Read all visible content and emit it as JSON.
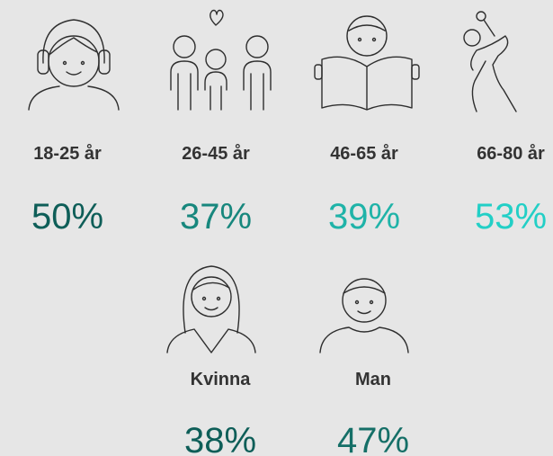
{
  "age_groups": [
    {
      "label": "18-25 år",
      "value": "50%",
      "color": "#0e5e58"
    },
    {
      "label": "26-45 år",
      "value": "37%",
      "color": "#17877d"
    },
    {
      "label": "46-65 år",
      "value": "39%",
      "color": "#1fb3a8"
    },
    {
      "label": "66-80 år",
      "value": "53%",
      "color": "#22cfc6"
    }
  ],
  "gender": [
    {
      "label": "Kvinna",
      "value": "38%",
      "color": "#0e5e58"
    },
    {
      "label": "Man",
      "value": "47%",
      "color": "#156f67"
    }
  ]
}
